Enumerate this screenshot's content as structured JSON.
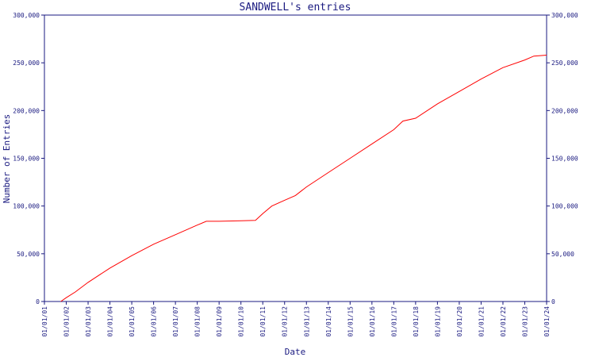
{
  "chart_data": {
    "type": "line",
    "title": "SANDWELL's entries",
    "xlabel": "Date",
    "ylabel": "Number of Entries",
    "x_ticks": [
      "01/01/01",
      "01/01/02",
      "01/01/03",
      "01/01/04",
      "01/01/05",
      "01/01/06",
      "01/01/07",
      "01/01/08",
      "01/01/09",
      "01/01/10",
      "01/01/11",
      "01/01/12",
      "01/01/13",
      "01/01/14",
      "01/01/15",
      "01/01/16",
      "01/01/17",
      "01/01/18",
      "01/01/19",
      "01/01/20",
      "01/01/21",
      "01/01/22",
      "01/01/23",
      "01/01/24"
    ],
    "y_ticks": [
      "0",
      "50,000",
      "100,000",
      "150,000",
      "200,000",
      "250,000",
      "300,000"
    ],
    "ylim": [
      0,
      300000
    ],
    "xlim": [
      "2001-01-01",
      "2024-01-01"
    ],
    "grid": false,
    "colors": {
      "line": "#ff0000",
      "axis": "#1a1a80"
    },
    "series": [
      {
        "values": [
          [
            "2001-10-01",
            0
          ],
          [
            "2002-01-01",
            4000
          ],
          [
            "2002-06-01",
            10000
          ],
          [
            "2003-01-01",
            20000
          ],
          [
            "2004-01-01",
            35000
          ],
          [
            "2005-01-01",
            48000
          ],
          [
            "2006-01-01",
            60000
          ],
          [
            "2007-01-01",
            70000
          ],
          [
            "2008-01-01",
            80000
          ],
          [
            "2008-06-01",
            84000
          ],
          [
            "2009-01-01",
            84000
          ],
          [
            "2010-01-01",
            84500
          ],
          [
            "2010-09-01",
            85000
          ],
          [
            "2011-01-01",
            92000
          ],
          [
            "2011-06-01",
            100000
          ],
          [
            "2012-01-01",
            106000
          ],
          [
            "2012-07-01",
            111000
          ],
          [
            "2013-01-01",
            120000
          ],
          [
            "2014-01-01",
            135000
          ],
          [
            "2015-01-01",
            150000
          ],
          [
            "2016-01-01",
            165000
          ],
          [
            "2017-01-01",
            180000
          ],
          [
            "2017-06-01",
            189000
          ],
          [
            "2018-01-01",
            192000
          ],
          [
            "2019-01-01",
            207000
          ],
          [
            "2020-01-01",
            220000
          ],
          [
            "2021-01-01",
            233000
          ],
          [
            "2022-01-01",
            245000
          ],
          [
            "2023-01-01",
            253000
          ],
          [
            "2023-06-01",
            257000
          ],
          [
            "2024-01-01",
            258000
          ]
        ]
      }
    ]
  }
}
